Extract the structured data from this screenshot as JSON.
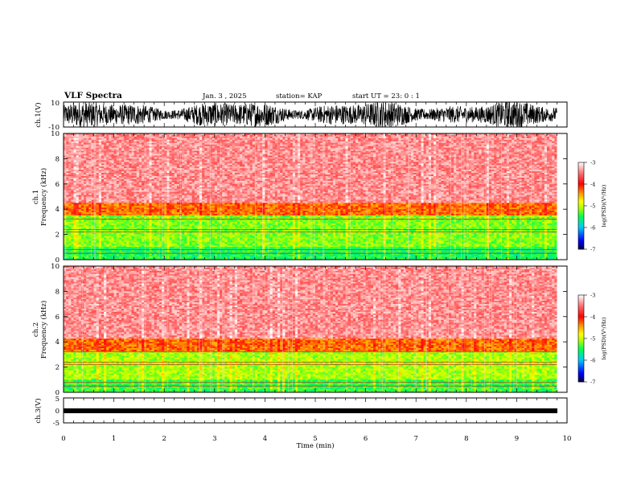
{
  "header": {
    "title": "VLF Spectra",
    "date": "Jan. 3 , 2025",
    "station": "station= KAP",
    "start": "start UT = 23: 0 : 1"
  },
  "chart_data": [
    {
      "type": "line",
      "name": "ch1-waveform",
      "ylabel": "ch.1(V)",
      "ylim": [
        -10,
        10
      ],
      "yticks": [
        "10",
        "-10"
      ],
      "xlim": [
        0,
        10
      ],
      "description_values": "dense oscillating waveform spanning roughly -10 to 10 V"
    },
    {
      "type": "heatmap",
      "name": "ch1-spectrogram",
      "ylabel": "ch.1\nFrequency (kHz)",
      "ylabel_line1": "ch.1",
      "ylabel_line2": "Frequency (kHz)",
      "ylim": [
        0,
        10
      ],
      "yticks": [
        "0",
        "2",
        "4",
        "6",
        "8",
        "10"
      ],
      "xlim": [
        0,
        9.8
      ],
      "colorbar": {
        "label": "log(PSD)(V²/Hz)",
        "ticks": [
          "-3",
          "-4",
          "-5",
          "-6",
          "-7"
        ],
        "range": [
          -7,
          -3
        ]
      },
      "bands_khz": [
        {
          "from": 0.0,
          "to": 1.0,
          "level": -5.5
        },
        {
          "from": 1.0,
          "to": 3.5,
          "level": -5.2
        },
        {
          "from": 3.5,
          "to": 4.5,
          "level": -4.3
        },
        {
          "from": 4.5,
          "to": 10.0,
          "level": -3.4
        }
      ]
    },
    {
      "type": "heatmap",
      "name": "ch2-spectrogram",
      "ylabel_line1": "ch.2",
      "ylabel_line2": "Frequency (kHz)",
      "ylim": [
        0,
        10
      ],
      "yticks": [
        "0",
        "2",
        "4",
        "6",
        "8",
        "10"
      ],
      "xlim": [
        0,
        9.8
      ],
      "colorbar": {
        "label": "log(PSD)(V²/Hz)",
        "ticks": [
          "-3",
          "-4",
          "-5",
          "-6",
          "-7"
        ],
        "range": [
          -7,
          -3
        ]
      },
      "bands_khz": [
        {
          "from": 0.0,
          "to": 1.0,
          "level": -5.4
        },
        {
          "from": 1.0,
          "to": 3.3,
          "level": -5.1
        },
        {
          "from": 3.3,
          "to": 4.3,
          "level": -4.3
        },
        {
          "from": 4.3,
          "to": 10.0,
          "level": -3.4
        }
      ]
    },
    {
      "type": "line",
      "name": "ch3-waveform",
      "ylabel": "ch.3(V)",
      "ylim": [
        -5,
        5
      ],
      "yticks": [
        "5",
        "0",
        "-5"
      ],
      "xlim": [
        0,
        9.8
      ],
      "description_values": "thin constant band near -1 V"
    }
  ],
  "xaxis": {
    "label": "Time (min)",
    "ticks": [
      "0",
      "1",
      "2",
      "3",
      "4",
      "5",
      "6",
      "7",
      "8",
      "9",
      "10"
    ],
    "range": [
      0,
      10
    ]
  },
  "colors": {
    "cmap": [
      "#000060",
      "#0000ff",
      "#00c8ff",
      "#00ff60",
      "#a8ff00",
      "#ffff00",
      "#ff9000",
      "#ff0000",
      "#ff8080",
      "#ffffff"
    ]
  }
}
